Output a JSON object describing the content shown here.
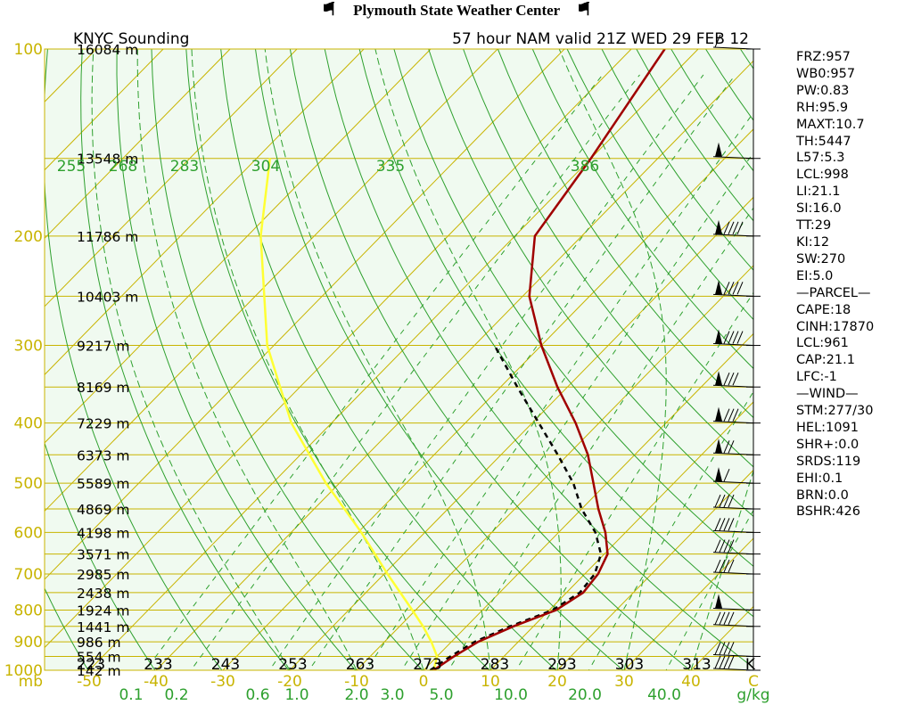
{
  "header": {
    "title": "Plymouth State Weather Center",
    "flag_icon": "pennant-icon"
  },
  "chart_data": {
    "type": "skew-t",
    "title_left": "KNYC Sounding",
    "title_right": "57 hour NAM valid 21Z WED 29 FEB 12",
    "pressure_labels": [
      100,
      200,
      300,
      400,
      500,
      600,
      700,
      800,
      900,
      1000
    ],
    "pressure_range_mb": [
      1000,
      100
    ],
    "temperature_ticks_c": [
      -50,
      -40,
      -30,
      -20,
      -10,
      0,
      10,
      20,
      30,
      40
    ],
    "temperature_axis_label": "C",
    "mixing_ratio_ticks": [
      "0.1",
      "0.2",
      "0.6",
      "1.0",
      "2.0",
      "3.0",
      "5.0",
      "10.0",
      "20.0",
      "40.0"
    ],
    "mixing_ratio_unit": "g/kg",
    "theta_labels_bottom_k": [
      "223",
      "233",
      "243",
      "253",
      "263",
      "273",
      "283",
      "293",
      "303",
      "313"
    ],
    "theta_unit": "K",
    "theta_e_labels_top": [
      "255",
      "268",
      "283",
      "304",
      "335",
      "386"
    ],
    "heights": [
      {
        "p": 100,
        "label": "16084 m"
      },
      {
        "p": 150,
        "label": "13548 m"
      },
      {
        "p": 200,
        "label": "11786 m"
      },
      {
        "p": 250,
        "label": "10403 m"
      },
      {
        "p": 300,
        "label": "9217 m"
      },
      {
        "p": 350,
        "label": "8169 m"
      },
      {
        "p": 400,
        "label": "7229 m"
      },
      {
        "p": 450,
        "label": "6373 m"
      },
      {
        "p": 500,
        "label": "5589 m"
      },
      {
        "p": 550,
        "label": "4869 m"
      },
      {
        "p": 600,
        "label": "4198 m"
      },
      {
        "p": 650,
        "label": "3571 m"
      },
      {
        "p": 700,
        "label": "2985 m"
      },
      {
        "p": 750,
        "label": "2438 m"
      },
      {
        "p": 800,
        "label": "1924 m"
      },
      {
        "p": 850,
        "label": "1441 m"
      },
      {
        "p": 900,
        "label": "986 m"
      },
      {
        "p": 950,
        "label": "554 m"
      },
      {
        "p": 1000,
        "label": "142 m"
      }
    ],
    "temperature_profile": [
      {
        "p": 1000,
        "t": 1.5
      },
      {
        "p": 950,
        "t": 2.5
      },
      {
        "p": 900,
        "t": 4.0
      },
      {
        "p": 850,
        "t": 7.0
      },
      {
        "p": 800,
        "t": 11.0
      },
      {
        "p": 750,
        "t": 12.5
      },
      {
        "p": 700,
        "t": 12.0
      },
      {
        "p": 650,
        "t": 10.5
      },
      {
        "p": 600,
        "t": 7.0
      },
      {
        "p": 550,
        "t": 2.5
      },
      {
        "p": 500,
        "t": -2.0
      },
      {
        "p": 450,
        "t": -7.0
      },
      {
        "p": 400,
        "t": -13.5
      },
      {
        "p": 350,
        "t": -21.5
      },
      {
        "p": 300,
        "t": -30.0
      },
      {
        "p": 250,
        "t": -39.0
      },
      {
        "p": 200,
        "t": -47.0
      },
      {
        "p": 150,
        "t": -50.0
      },
      {
        "p": 100,
        "t": -55.0
      }
    ],
    "dewpoint_profile": [
      {
        "p": 1000,
        "t": 1.0
      },
      {
        "p": 950,
        "t": 2.0
      },
      {
        "p": 900,
        "t": 3.5
      },
      {
        "p": 850,
        "t": 6.5
      },
      {
        "p": 800,
        "t": 10.5
      },
      {
        "p": 750,
        "t": 12.0
      },
      {
        "p": 700,
        "t": 11.5
      },
      {
        "p": 650,
        "t": 9.5
      },
      {
        "p": 600,
        "t": 5.5
      },
      {
        "p": 550,
        "t": 0.0
      },
      {
        "p": 500,
        "t": -5.0
      },
      {
        "p": 450,
        "t": -11.5
      },
      {
        "p": 400,
        "t": -19.0
      },
      {
        "p": 350,
        "t": -27.5
      },
      {
        "p": 300,
        "t": -37.0
      }
    ],
    "parcel_path": [
      {
        "p": 1000,
        "t": 1.5
      },
      {
        "p": 950,
        "t": 0.0
      },
      {
        "p": 900,
        "t": -3.0
      },
      {
        "p": 850,
        "t": -6.5
      },
      {
        "p": 800,
        "t": -10.5
      },
      {
        "p": 700,
        "t": -19.5
      },
      {
        "p": 600,
        "t": -29.5
      },
      {
        "p": 500,
        "t": -42.0
      },
      {
        "p": 400,
        "t": -56.0
      },
      {
        "p": 300,
        "t": -71.0
      },
      {
        "p": 200,
        "t": -88.0
      },
      {
        "p": 150,
        "t": -98.0
      }
    ],
    "winds": [
      {
        "p": 100,
        "barb": "short"
      },
      {
        "p": 150,
        "barb": "pennants"
      },
      {
        "p": 200,
        "barb": "pennant+4"
      },
      {
        "p": 250,
        "barb": "pennant+4"
      },
      {
        "p": 300,
        "barb": "pennant+4"
      },
      {
        "p": 350,
        "barb": "pennant+3"
      },
      {
        "p": 400,
        "barb": "pennant+3"
      },
      {
        "p": 450,
        "barb": "pennant+2"
      },
      {
        "p": 500,
        "barb": "pennant+1"
      },
      {
        "p": 550,
        "barb": "4"
      },
      {
        "p": 600,
        "barb": "4"
      },
      {
        "p": 650,
        "barb": "4"
      },
      {
        "p": 700,
        "barb": "4"
      },
      {
        "p": 800,
        "barb": "pennant"
      },
      {
        "p": 850,
        "barb": "4"
      },
      {
        "p": 950,
        "barb": "4"
      },
      {
        "p": 1000,
        "barb": "4"
      }
    ],
    "grid": true,
    "colors": {
      "background": "#f0faf0",
      "isobar": "#c8b400",
      "isotherm": "#c8b400",
      "dry_adiabat": "#2ea02e",
      "moist_adiabat": "#2ea02e",
      "mixing_ratio": "#2ea02e",
      "temperature": "#a00000",
      "dewpoint": "#000000",
      "parcel": "#ffff33",
      "label_gold": "#c8b400",
      "label_green": "#2ea02e"
    }
  },
  "indices": [
    "FRZ:957",
    "WB0:957",
    "PW:0.83",
    "RH:95.9",
    "MAXT:10.7",
    "TH:5447",
    "L57:5.3",
    "LCL:998",
    "LI:21.1",
    "SI:16.0",
    "TT:29",
    "KI:12",
    "SW:270",
    "EI:5.0",
    "—PARCEL—",
    "CAPE:18",
    "CINH:17870",
    "LCL:961",
    "CAP:21.1",
    "LFC:-1",
    "—WIND—",
    "STM:277/30",
    "HEL:1091",
    "SHR+:0.0",
    "SRDS:119",
    "EHI:0.1",
    "BRN:0.0",
    "BSHR:426"
  ]
}
